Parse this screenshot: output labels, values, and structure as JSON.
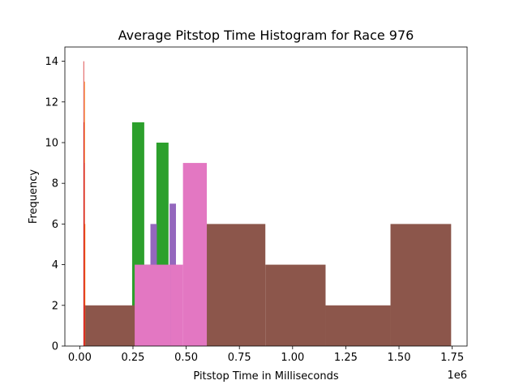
{
  "chart_data": {
    "type": "bar",
    "title": "Average Pitstop Time Histogram for Race 976",
    "xlabel": "Pitstop Time in Milliseconds",
    "ylabel": "Frequency",
    "x_offset_label": "1e6",
    "xlim": [
      -70000,
      1820000
    ],
    "ylim": [
      0,
      14.7
    ],
    "x_ticks": [
      0,
      250000,
      500000,
      750000,
      1000000,
      1250000,
      1500000,
      1750000
    ],
    "x_tick_labels": [
      "0.00",
      "0.25",
      "0.50",
      "0.75",
      "1.00",
      "1.25",
      "1.50",
      "1.75"
    ],
    "y_ticks": [
      0,
      2,
      4,
      6,
      8,
      10,
      12,
      14
    ],
    "y_tick_labels": [
      "0",
      "2",
      "4",
      "6",
      "8",
      "10",
      "12",
      "14"
    ],
    "grid": false,
    "series": [
      {
        "color": "#1f77b4",
        "bins": [
          {
            "x0": 20000,
            "x1": 22500,
            "count": 5
          },
          {
            "x0": 22500,
            "x1": 25000,
            "count": 2
          }
        ]
      },
      {
        "color": "#ff7f0e",
        "bins": [
          {
            "x0": 21000,
            "x1": 23000,
            "count": 13
          },
          {
            "x0": 23000,
            "x1": 25000,
            "count": 6
          },
          {
            "x0": 25000,
            "x1": 27000,
            "count": 2
          }
        ]
      },
      {
        "color": "#2ca02c",
        "bins": [
          {
            "x0": 246000,
            "x1": 303000,
            "count": 11
          },
          {
            "x0": 303000,
            "x1": 360000,
            "count": 4
          },
          {
            "x0": 360000,
            "x1": 417000,
            "count": 10
          }
        ]
      },
      {
        "color": "#d62728",
        "bins": [
          {
            "x0": 17000,
            "x1": 18500,
            "count": 14
          },
          {
            "x0": 18500,
            "x1": 20000,
            "count": 11
          },
          {
            "x0": 20000,
            "x1": 21500,
            "count": 9
          },
          {
            "x0": 21500,
            "x1": 23000,
            "count": 2
          }
        ]
      },
      {
        "color": "#9467bd",
        "bins": [
          {
            "x0": 272000,
            "x1": 302000,
            "count": 2
          },
          {
            "x0": 332000,
            "x1": 362000,
            "count": 6
          },
          {
            "x0": 392000,
            "x1": 422000,
            "count": 2
          },
          {
            "x0": 422000,
            "x1": 452000,
            "count": 7
          }
        ]
      },
      {
        "color": "#8c564b",
        "bins": [
          {
            "x0": 26000,
            "x1": 306000,
            "count": 2
          },
          {
            "x0": 590000,
            "x1": 872000,
            "count": 6
          },
          {
            "x0": 872000,
            "x1": 1155000,
            "count": 4
          },
          {
            "x0": 1155000,
            "x1": 1460000,
            "count": 2
          },
          {
            "x0": 1460000,
            "x1": 1745000,
            "count": 6
          }
        ]
      },
      {
        "color": "#e377c2",
        "bins": [
          {
            "x0": 258000,
            "x1": 427000,
            "count": 4
          },
          {
            "x0": 427000,
            "x1": 485000,
            "count": 4
          },
          {
            "x0": 485000,
            "x1": 597000,
            "count": 9
          }
        ]
      }
    ]
  }
}
